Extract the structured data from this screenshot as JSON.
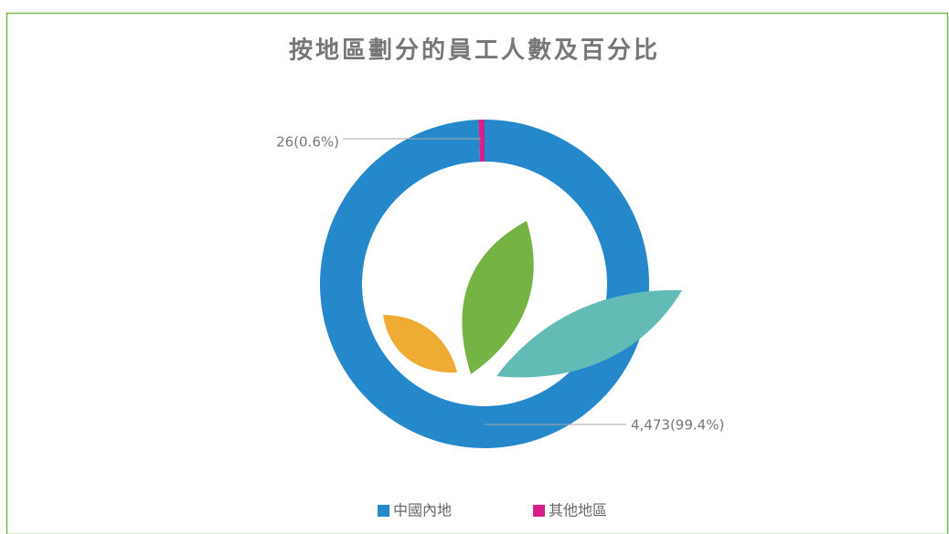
{
  "chart_data": {
    "type": "donut",
    "title": "按地區劃分的員工人數及百分比",
    "categories": [
      "中國內地",
      "其他地區"
    ],
    "values": [
      4473,
      26
    ],
    "value_labels": [
      "4,473(99.4%)",
      "26(0.6%)"
    ],
    "colors": [
      "#2588cb",
      "#d81f87"
    ],
    "legend": "bottom"
  }
}
